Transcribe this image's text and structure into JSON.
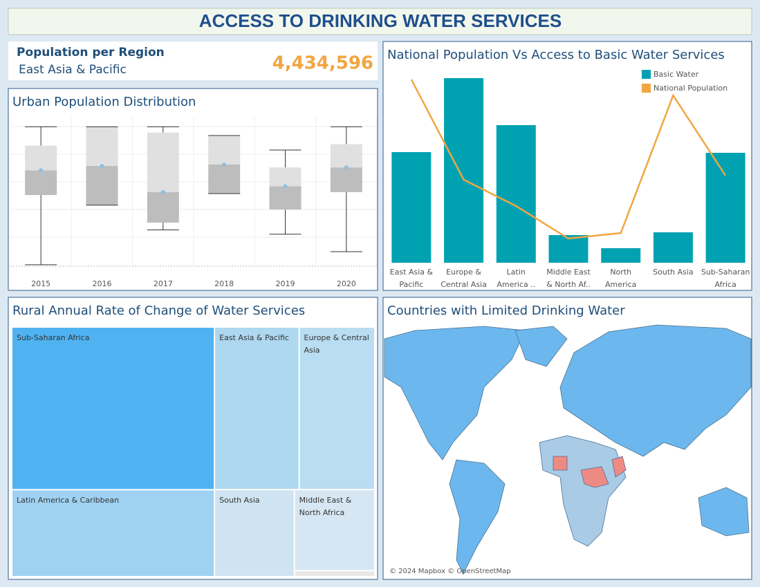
{
  "title": "ACCESS TO DRINKING WATER SERVICES",
  "kpi": {
    "label": "Population per Region",
    "region": "East Asia & Pacific",
    "value": "4,434,596"
  },
  "chart_data": [
    {
      "type": "box",
      "title": "Urban Population Distribution",
      "categories": [
        "2015",
        "2016",
        "2017",
        "2018",
        "2019",
        "2020"
      ],
      "min": [
        1,
        42,
        25,
        50,
        22,
        10
      ],
      "q1": [
        49,
        42,
        30,
        50,
        39,
        51
      ],
      "median": [
        66,
        69,
        51,
        70,
        55,
        68
      ],
      "q3": [
        83,
        96,
        92,
        90,
        68,
        84
      ],
      "max": [
        96,
        96,
        96,
        90,
        80,
        96
      ],
      "ylim": [
        0,
        100
      ],
      "upper_color": "#e0e0e0",
      "lower_color": "#bdbdbd"
    },
    {
      "type": "combo",
      "title": "National Population Vs Access to Basic Water Services",
      "categories": [
        "East Asia & Pacific",
        "Europe & Central Asia",
        "Latin America ..",
        "Middle East & North Af..",
        "North America",
        "South Asia",
        "Sub-Saharan Africa"
      ],
      "series": [
        {
          "name": "Basic Water",
          "type": "bar",
          "color": "#00a2b2",
          "values": [
            160,
            267,
            199,
            40,
            21,
            44,
            159
          ]
        },
        {
          "name": "National Population",
          "type": "line",
          "color": "#f2a541",
          "values": [
            265,
            120,
            82,
            35,
            43,
            242,
            126
          ]
        }
      ],
      "ylim": [
        0,
        280
      ],
      "legend": "top-right"
    },
    {
      "type": "treemap",
      "title": "Rural Annual Rate of Change of Water Services",
      "categories": [
        "Sub-Saharan Africa",
        "Latin America & Caribbean",
        "East Asia & Pacific",
        "Europe & Central Asia",
        "South Asia",
        "Middle East & North Africa",
        null
      ],
      "values": [
        68.3,
        36.5,
        28.5,
        25.5,
        14.4,
        13.5,
        1.0
      ],
      "colors": [
        "#4fb3f1",
        "#9fd1f2",
        "#aed7f0",
        "#b9ddf2",
        "#cfe4f2",
        "#d6e7f3",
        "#e8e8e8"
      ]
    },
    {
      "type": "map",
      "title": "Countries with Limited Drinking Water",
      "attribution": "© 2024 Mapbox © OpenStreetMap"
    }
  ]
}
